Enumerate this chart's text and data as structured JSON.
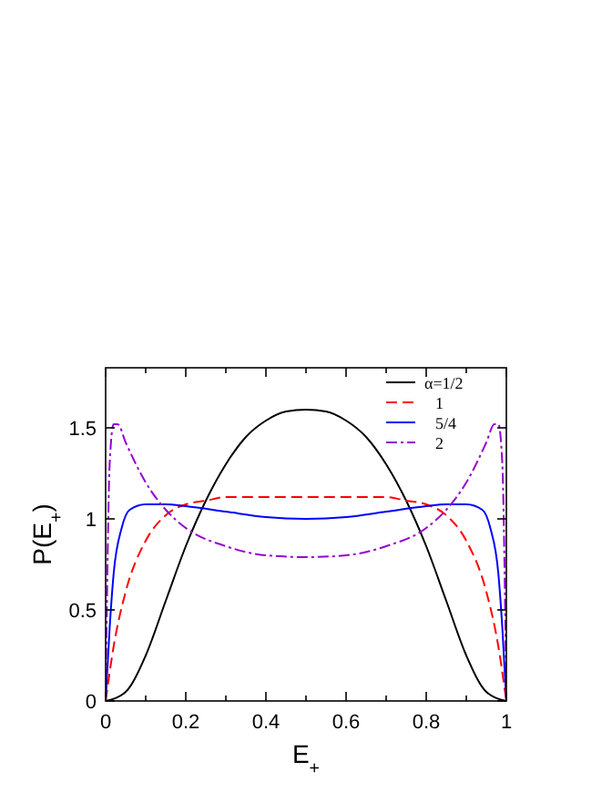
{
  "chart_data": {
    "type": "line",
    "xlabel": "E$_{+}$",
    "ylabel": "P(E$_{+}$)",
    "xlim": [
      0,
      1
    ],
    "ylim": [
      0,
      1.83
    ],
    "xticks": [
      0,
      {
        "value": 0.1,
        "label": null
      },
      0.2,
      {
        "value": 0.3,
        "label": null
      },
      0.4,
      {
        "value": 0.5,
        "label": null
      },
      0.6,
      {
        "value": 0.7,
        "label": null
      },
      0.8,
      {
        "value": 0.9,
        "label": null
      },
      1
    ],
    "yticks": [
      0,
      0.5,
      1,
      1.5
    ],
    "grid": false,
    "legend": "top right",
    "marker": "none",
    "series": [
      {
        "name": "α=1/2",
        "color": "#000000",
        "line_style": "solid",
        "x": [
          0,
          0.05,
          0.1,
          0.15,
          0.2,
          0.25,
          0.3,
          0.35,
          0.4,
          0.45,
          0.5,
          0.55,
          0.6,
          0.65,
          0.7,
          0.75,
          0.8,
          0.85,
          0.9,
          0.95,
          1
        ],
        "values": [
          0,
          0.05,
          0.25,
          0.55,
          0.85,
          1.1,
          1.3,
          1.45,
          1.54,
          1.59,
          1.6,
          1.59,
          1.54,
          1.45,
          1.3,
          1.1,
          0.85,
          0.55,
          0.25,
          0.05,
          0
        ]
      },
      {
        "name": "1",
        "color": "#ff0000",
        "line_style": "dashed",
        "x": [
          0,
          0.02,
          0.05,
          0.1,
          0.15,
          0.2,
          0.25,
          0.3,
          0.4,
          0.5,
          0.6,
          0.7,
          0.75,
          0.8,
          0.85,
          0.9,
          0.95,
          0.98,
          1
        ],
        "values": [
          0,
          0.3,
          0.6,
          0.88,
          1.02,
          1.08,
          1.1,
          1.12,
          1.12,
          1.12,
          1.12,
          1.12,
          1.1,
          1.08,
          1.02,
          0.88,
          0.6,
          0.3,
          0
        ]
      },
      {
        "name": "5/4",
        "color": "#0000ff",
        "line_style": "solid",
        "x": [
          0,
          0.01,
          0.02,
          0.04,
          0.06,
          0.1,
          0.15,
          0.2,
          0.3,
          0.4,
          0.5,
          0.6,
          0.7,
          0.8,
          0.85,
          0.9,
          0.94,
          0.96,
          0.98,
          0.99,
          1
        ],
        "values": [
          0,
          0.4,
          0.7,
          0.95,
          1.05,
          1.08,
          1.08,
          1.07,
          1.04,
          1.01,
          1.0,
          1.01,
          1.04,
          1.07,
          1.08,
          1.08,
          1.05,
          0.95,
          0.7,
          0.4,
          0
        ]
      },
      {
        "name": "2",
        "color": "#9400d3",
        "line_style": "dashdot",
        "x": [
          0,
          0.005,
          0.01,
          0.02,
          0.03,
          0.05,
          0.1,
          0.15,
          0.2,
          0.3,
          0.4,
          0.5,
          0.6,
          0.7,
          0.8,
          0.85,
          0.9,
          0.95,
          0.97,
          0.98,
          0.99,
          0.995,
          1
        ],
        "values": [
          0,
          0.8,
          1.3,
          1.52,
          1.52,
          1.42,
          1.2,
          1.05,
          0.95,
          0.85,
          0.8,
          0.79,
          0.8,
          0.85,
          0.95,
          1.05,
          1.2,
          1.42,
          1.52,
          1.52,
          1.3,
          0.8,
          0
        ]
      }
    ]
  }
}
